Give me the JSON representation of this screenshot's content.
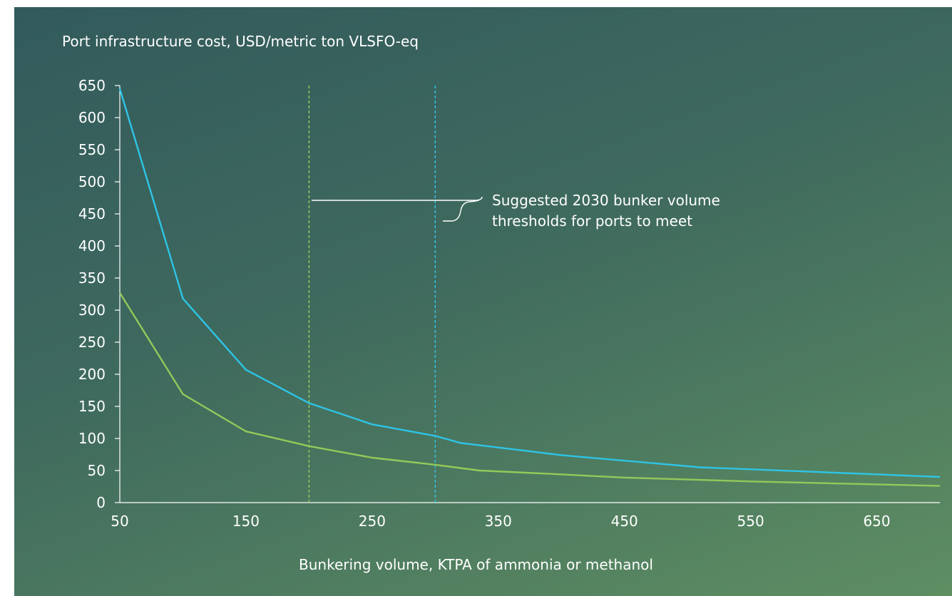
{
  "chart_data": {
    "type": "line",
    "xlabel": "Bunkering volume, KTPA of ammonia or methanol",
    "ylabel": "Port infrastructure cost, USD/metric ton VLSFO-eq",
    "xlim": [
      50,
      700
    ],
    "ylim": [
      0,
      650
    ],
    "x_ticks": [
      50,
      150,
      250,
      350,
      450,
      550,
      650
    ],
    "y_ticks": [
      0,
      50,
      100,
      150,
      200,
      250,
      300,
      350,
      400,
      450,
      500,
      550,
      600,
      650
    ],
    "grid": false,
    "series": [
      {
        "color": "#2ec4e6",
        "points": [
          [
            50,
            645
          ],
          [
            100,
            318
          ],
          [
            150,
            207
          ],
          [
            200,
            155
          ],
          [
            250,
            122
          ],
          [
            300,
            104
          ],
          [
            320,
            93
          ],
          [
            400,
            74
          ],
          [
            510,
            55
          ],
          [
            600,
            48
          ],
          [
            700,
            40
          ]
        ]
      },
      {
        "color": "#93c95a",
        "points": [
          [
            50,
            327
          ],
          [
            100,
            169
          ],
          [
            150,
            111
          ],
          [
            200,
            88
          ],
          [
            250,
            70
          ],
          [
            300,
            59
          ],
          [
            335,
            50
          ],
          [
            400,
            44
          ],
          [
            450,
            39
          ],
          [
            550,
            33
          ],
          [
            700,
            26
          ]
        ]
      }
    ],
    "reference_lines": [
      {
        "x": 200,
        "color": "#93c95a",
        "style": "dashed"
      },
      {
        "x": 300,
        "color": "#2ec4e6",
        "style": "dashed"
      }
    ],
    "annotation": {
      "lines": [
        "Suggested 2030 bunker volume",
        "thresholds for ports to meet"
      ],
      "color": "#ffffff"
    }
  }
}
